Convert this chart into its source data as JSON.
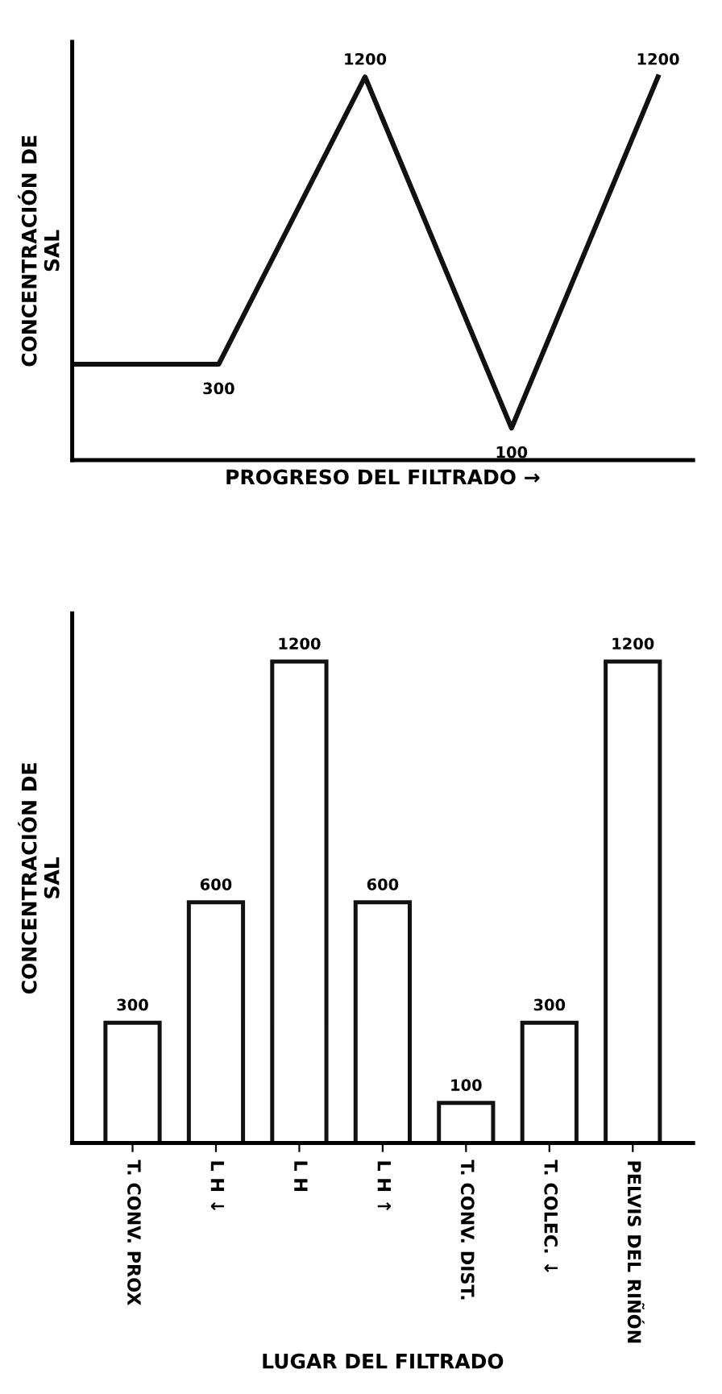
{
  "chart_data": [
    {
      "type": "line",
      "xlabel": "PROGRESO DEL FILTRADO →",
      "ylabel": "CONCENTRACIÓN DE\nSAL",
      "categories": [
        null,
        null,
        null,
        null,
        null
      ],
      "series": [
        {
          "color": "#111111",
          "values": [
            300,
            300,
            1200,
            100,
            1200
          ],
          "value_labels": [
            null,
            "300",
            "1200",
            "100",
            "1200"
          ]
        }
      ],
      "marker": "none",
      "line_style": "solid",
      "tick_labels": false,
      "grid": false,
      "legend": false
    },
    {
      "type": "bar",
      "xlabel": "LUGAR DEL FILTRADO",
      "ylabel": "CONCENTRACIÓN DE\nSAL",
      "categories": [
        "T. CONV. PROX",
        "L H ↓",
        "L H",
        "L H ↑",
        "T. CONV. DIST.",
        "T. COLEC. ↓",
        "PELVIS DEL RIÑÓN"
      ],
      "series": [
        {
          "color": "#ffffff",
          "values": [
            300,
            600,
            1200,
            600,
            100,
            300,
            1200
          ]
        }
      ],
      "data_labels": true,
      "tick_labels": "x",
      "grid": false,
      "legend": false
    }
  ]
}
